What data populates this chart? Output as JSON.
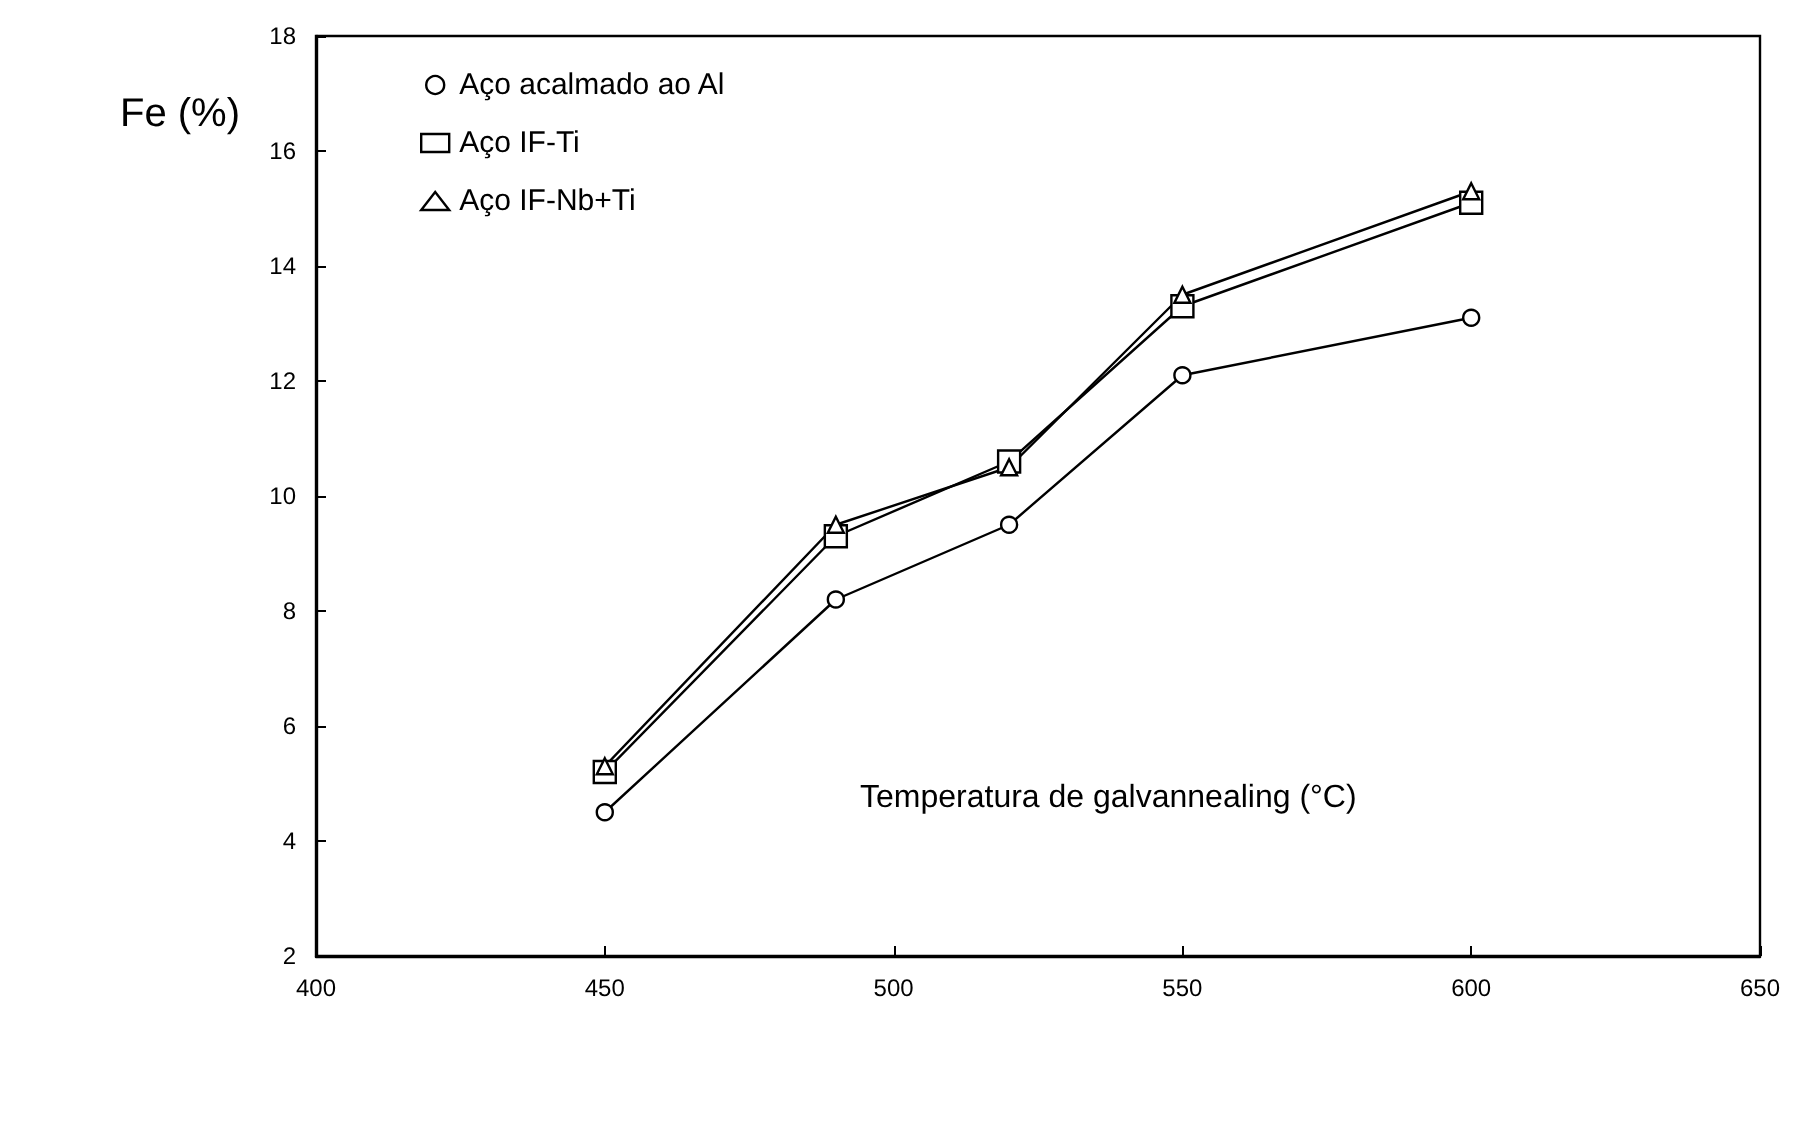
{
  "chart_data": {
    "type": "line",
    "xlabel": "Temperatura de galvannealing (°C)",
    "ylabel": "Fe (%)",
    "x": [
      450,
      490,
      520,
      550,
      600
    ],
    "series": [
      {
        "name": "Aço acalmado ao Al",
        "color": "#000000",
        "marker": "circle",
        "values": [
          4.5,
          8.2,
          9.5,
          12.1,
          13.1
        ]
      },
      {
        "name": "Aço IF-Ti",
        "color": "#000000",
        "marker": "square",
        "values": [
          5.2,
          9.3,
          10.6,
          13.3,
          15.1
        ]
      },
      {
        "name": "Aço IF-Nb+Ti",
        "color": "#000000",
        "marker": "triangle",
        "values": [
          5.3,
          9.5,
          10.5,
          13.5,
          15.3
        ]
      }
    ],
    "xlim": [
      400,
      650
    ],
    "xticks": [
      400,
      450,
      500,
      550,
      600,
      650
    ],
    "ylim": [
      2,
      18
    ],
    "yticks": [
      2,
      4,
      6,
      8,
      10,
      12,
      14,
      16,
      18
    ],
    "grid": false,
    "legend": "top left"
  }
}
